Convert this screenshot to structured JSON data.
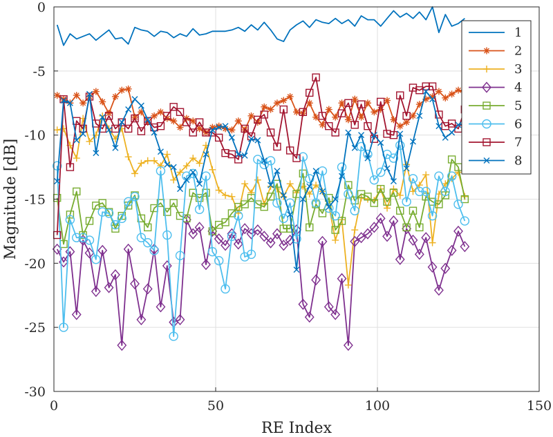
{
  "chart_data": {
    "type": "line",
    "title": "",
    "xlabel": "RE Index",
    "ylabel": "Magnitude [dB]",
    "xlim": [
      0,
      150
    ],
    "ylim": [
      -30,
      0
    ],
    "xticks": [
      0,
      50,
      100,
      150
    ],
    "yticks": [
      0,
      -5,
      -10,
      -15,
      -20,
      -25,
      -30
    ],
    "grid": true,
    "legend_position": "top-right",
    "x": [
      1,
      3,
      5,
      7,
      9,
      11,
      13,
      15,
      17,
      19,
      21,
      23,
      25,
      27,
      29,
      31,
      33,
      35,
      37,
      39,
      41,
      43,
      45,
      47,
      49,
      51,
      53,
      55,
      57,
      59,
      61,
      63,
      65,
      67,
      69,
      71,
      73,
      75,
      77,
      79,
      81,
      83,
      85,
      87,
      89,
      91,
      93,
      95,
      97,
      99,
      101,
      103,
      105,
      107,
      109,
      111,
      113,
      115,
      117,
      119,
      121,
      123,
      125,
      127
    ],
    "series": [
      {
        "name": "1",
        "color": "#0072BD",
        "marker": "none",
        "values": [
          -1.4,
          -3.0,
          -2.1,
          -2.5,
          -2.3,
          -2.1,
          -2.6,
          -2.2,
          -1.8,
          -2.5,
          -2.4,
          -2.9,
          -1.6,
          -1.8,
          -1.9,
          -2.3,
          -1.9,
          -2.0,
          -2.4,
          -2.1,
          -2.3,
          -1.7,
          -2.2,
          -2.1,
          -1.9,
          -1.9,
          -1.9,
          -1.8,
          -1.6,
          -1.9,
          -1.4,
          -1.8,
          -1.2,
          -1.8,
          -2.5,
          -2.7,
          -1.8,
          -1.4,
          -1.1,
          -1.6,
          -1.0,
          -1.2,
          -1.3,
          -0.9,
          -1.3,
          -1.0,
          -1.5,
          -0.7,
          -1.0,
          -1.0,
          -1.5,
          -0.9,
          -0.3,
          -0.8,
          -0.5,
          -0.9,
          -0.4,
          -1.0,
          -0.0,
          -2.0,
          -0.6,
          -1.5,
          -1.3,
          -0.9
        ]
      },
      {
        "name": "2",
        "color": "#D95319",
        "marker": "asterisk",
        "values": [
          -6.9,
          -7.2,
          -7.5,
          -6.9,
          -7.5,
          -7.0,
          -6.6,
          -7.4,
          -8.3,
          -7.0,
          -6.5,
          -6.4,
          -8.6,
          -8.2,
          -9.0,
          -8.5,
          -8.2,
          -8.7,
          -8.9,
          -9.4,
          -8.7,
          -8.9,
          -9.5,
          -9.8,
          -9.4,
          -9.3,
          -9.5,
          -9.6,
          -8.9,
          -9.6,
          -8.5,
          -9.0,
          -7.8,
          -8.0,
          -7.5,
          -7.3,
          -7.0,
          -8.2,
          -8.3,
          -7.5,
          -8.6,
          -9.2,
          -8.0,
          -8.6,
          -7.5,
          -8.8,
          -7.2,
          -8.6,
          -7.5,
          -8.2,
          -8.0,
          -7.3,
          -8.8,
          -9.3,
          -9.0,
          -8.5,
          -7.6,
          -7.2,
          -7.0,
          -6.6,
          -7.1,
          -6.8,
          -6.5,
          -6.7
        ]
      },
      {
        "name": "3",
        "color": "#EDB120",
        "marker": "plus",
        "values": [
          -9.6,
          -9.5,
          -10.8,
          -11.8,
          -8.7,
          -10.5,
          -10.0,
          -8.5,
          -9.5,
          -10.3,
          -9.5,
          -11.7,
          -13.0,
          -12.2,
          -12.0,
          -12.0,
          -12.4,
          -11.5,
          -13.5,
          -12.9,
          -12.4,
          -11.8,
          -12.2,
          -10.8,
          -12.7,
          -14.3,
          -14.7,
          -14.8,
          -16.1,
          -13.8,
          -14.5,
          -13.5,
          -15.4,
          -14.0,
          -14.2,
          -14.8,
          -13.8,
          -14.5,
          -14.0,
          -14.6,
          -13.9,
          -14.4,
          -15.5,
          -18.2,
          -16.6,
          -21.7,
          -17.4,
          -14.9,
          -15.0,
          -15.1,
          -14.2,
          -15.7,
          -14.2,
          -14.7,
          -12.3,
          -14.4,
          -13.9,
          -13.1,
          -18.4,
          -14.6,
          -13.8,
          -13.4,
          -12.9,
          -14.8
        ]
      },
      {
        "name": "4",
        "color": "#7E2F8E",
        "marker": "diamond",
        "values": [
          -18.9,
          -19.9,
          -19.1,
          -24.0,
          -18.2,
          -19.2,
          -22.2,
          -19.0,
          -21.9,
          -20.9,
          -26.4,
          -18.9,
          -21.6,
          -24.4,
          -22.0,
          -18.9,
          -23.4,
          -20.2,
          -24.6,
          -24.4,
          -16.6,
          -17.7,
          -17.2,
          -20.1,
          -17.5,
          -18.1,
          -18.6,
          -17.7,
          -18.5,
          -17.3,
          -17.7,
          -17.4,
          -17.9,
          -18.4,
          -17.7,
          -18.6,
          -18.2,
          -17.4,
          -23.2,
          -24.2,
          -21.3,
          -18.3,
          -23.4,
          -24.0,
          -21.2,
          -26.4,
          -18.3,
          -18.0,
          -17.7,
          -17.2,
          -16.5,
          -17.9,
          -16.7,
          -19.7,
          -17.3,
          -18.2,
          -19.3,
          -18.0,
          -20.3,
          -22.1,
          -20.4,
          -19.0,
          -17.5,
          -18.7
        ]
      },
      {
        "name": "5",
        "color": "#77AC30",
        "marker": "square",
        "values": [
          -14.9,
          -18.5,
          -16.2,
          -14.4,
          -17.8,
          -16.7,
          -15.5,
          -15.3,
          -16.0,
          -17.3,
          -16.3,
          -15.5,
          -14.7,
          -16.5,
          -17.2,
          -15.7,
          -15.3,
          -16.0,
          -15.3,
          -16.3,
          -16.5,
          -14.5,
          -14.9,
          -14.5,
          -17.5,
          -17.0,
          -16.8,
          -16.1,
          -15.6,
          -15.4,
          -14.9,
          -15.4,
          -15.6,
          -14.8,
          -13.8,
          -17.3,
          -17.3,
          -14.6,
          -13.0,
          -17.2,
          -15.4,
          -16.1,
          -14.9,
          -17.4,
          -16.7,
          -13.9,
          -15.1,
          -14.6,
          -14.8,
          -15.3,
          -14.2,
          -15.2,
          -14.5,
          -15.9,
          -17.2,
          -15.9,
          -17.2,
          -14.8,
          -15.2,
          -15.4,
          -14.7,
          -11.9,
          -12.5,
          -15.0
        ]
      },
      {
        "name": "6",
        "color": "#4DBEEE",
        "marker": "circle",
        "values": [
          -12.4,
          -25.0,
          -16.6,
          -18.0,
          -18.0,
          -18.2,
          -19.7,
          -16.0,
          -16.1,
          -17.0,
          -16.5,
          -15.2,
          -14.8,
          -18.0,
          -18.4,
          -19.0,
          -12.8,
          -17.8,
          -25.7,
          -19.4,
          -13.2,
          -13.0,
          -15.8,
          -13.2,
          -19.1,
          -19.8,
          -22.0,
          -17.9,
          -16.3,
          -19.5,
          -19.3,
          -11.9,
          -12.3,
          -12.0,
          -15.3,
          -16.5,
          -15.3,
          -18.1,
          -11.7,
          -13.4,
          -15.3,
          -12.8,
          -15.7,
          -16.3,
          -12.5,
          -14.6,
          -15.9,
          -10.9,
          -11.5,
          -13.5,
          -12.9,
          -11.5,
          -11.8,
          -10.8,
          -15.2,
          -13.4,
          -14.4,
          -14.4,
          -16.3,
          -13.2,
          -14.4,
          -13.2,
          -15.4,
          -16.7
        ]
      },
      {
        "name": "7",
        "color": "#A2142F",
        "marker": "square",
        "values": [
          -17.8,
          -7.2,
          -12.5,
          -8.9,
          -9.5,
          -7.0,
          -9.1,
          -9.5,
          -8.5,
          -9.5,
          -9.0,
          -9.5,
          -8.7,
          -9.7,
          -8.9,
          -9.4,
          -9.3,
          -8.5,
          -7.8,
          -8.2,
          -9.0,
          -9.8,
          -9.0,
          -9.8,
          -9.8,
          -10.2,
          -11.4,
          -11.5,
          -11.9,
          -9.5,
          -10.1,
          -8.8,
          -8.4,
          -9.8,
          -10.9,
          -8.0,
          -11.2,
          -11.8,
          -8.2,
          -6.7,
          -5.5,
          -8.5,
          -9.3,
          -9.8,
          -8.3,
          -7.5,
          -9.2,
          -7.6,
          -9.3,
          -10.3,
          -7.4,
          -9.9,
          -10.0,
          -6.9,
          -8.5,
          -6.3,
          -6.5,
          -6.2,
          -6.2,
          -8.4,
          -9.3,
          -9.1,
          -9.5,
          -8.0
        ]
      },
      {
        "name": "8",
        "color": "#0072BD",
        "marker": "x",
        "values": [
          -13.6,
          -7.3,
          -7.5,
          -10.4,
          -9.9,
          -6.8,
          -11.4,
          -8.6,
          -9.6,
          -11.0,
          -9.0,
          -8.0,
          -7.2,
          -7.7,
          -8.8,
          -9.8,
          -11.3,
          -12.3,
          -12.5,
          -14.2,
          -13.5,
          -12.9,
          -13.8,
          -11.5,
          -9.6,
          -9.4,
          -9.3,
          -10.2,
          -11.5,
          -11.6,
          -10.3,
          -10.4,
          -12.0,
          -13.9,
          -12.8,
          -14.7,
          -16.2,
          -20.5,
          -15.0,
          -14.0,
          -12.8,
          -14.4,
          -15.6,
          -15.0,
          -13.2,
          -9.8,
          -11.0,
          -10.0,
          -11.8,
          -10.0,
          -10.6,
          -12.6,
          -13.6,
          -9.9,
          -12.6,
          -10.5,
          -8.5,
          -6.6,
          -7.2,
          -9.3,
          -10.2,
          -9.8,
          -9.2,
          -9.1
        ]
      }
    ]
  }
}
